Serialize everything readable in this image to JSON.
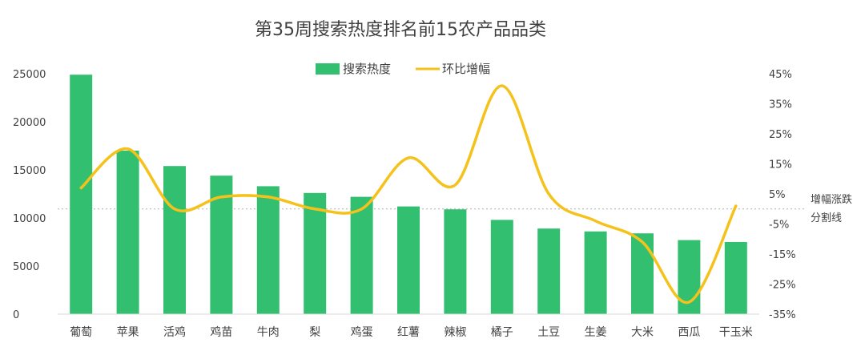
{
  "chart_data": {
    "type": "bar",
    "title": "第35周搜索热度排名前15农产品品类",
    "categories": [
      "葡萄",
      "苹果",
      "活鸡",
      "鸡苗",
      "牛肉",
      "梨",
      "鸡蛋",
      "红薯",
      "辣椒",
      "橘子",
      "土豆",
      "生姜",
      "大米",
      "西瓜",
      "干玉米"
    ],
    "series": [
      {
        "name": "搜索热度",
        "type": "bar",
        "axis": "left",
        "color": "#33bf70",
        "values": [
          24900,
          17000,
          15400,
          14400,
          13300,
          12600,
          12200,
          11200,
          10900,
          9800,
          8900,
          8600,
          8400,
          7700,
          7500
        ]
      },
      {
        "name": "环比增幅",
        "type": "line",
        "axis": "right",
        "smooth": true,
        "color": "#f5c21b",
        "values": [
          7,
          20,
          0,
          4,
          4,
          0,
          0,
          17,
          8,
          41,
          5,
          -4,
          -11,
          -31,
          1
        ]
      }
    ],
    "y_left": {
      "min": 0,
      "max": 25000,
      "ticks": [
        "0",
        "5000",
        "10000",
        "15000",
        "20000",
        "25000"
      ]
    },
    "y_right": {
      "min": -35,
      "max": 45,
      "ticks": [
        "-35%",
        "-25%",
        "-15%",
        "-5%",
        "5%",
        "15%",
        "25%",
        "35%",
        "45%"
      ]
    },
    "reference_line": {
      "value": 0,
      "label_line1": "增幅涨跌",
      "label_line2": "分割线",
      "style": "dotted"
    },
    "legend": "top-center",
    "grid": false
  }
}
